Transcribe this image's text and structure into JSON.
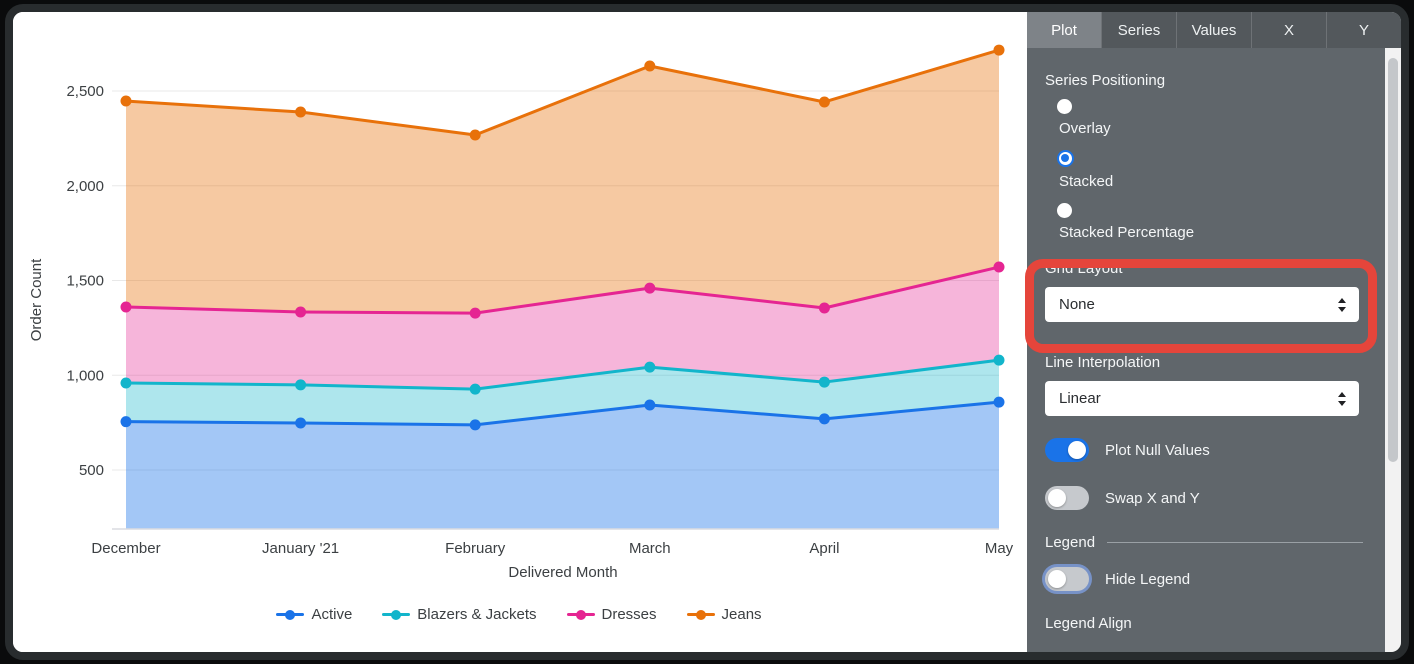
{
  "chart": {
    "y_axis_title": "Order Count",
    "x_axis_title": "Delivered Month"
  },
  "chart_data": {
    "type": "area",
    "stacked": true,
    "x": [
      "December",
      "January '21",
      "February",
      "March",
      "April",
      "May"
    ],
    "series": [
      {
        "name": "Active",
        "color": "#1A73E8",
        "fill": "rgba(26,115,232,0.40)",
        "values": [
          755,
          748,
          738,
          843,
          770,
          858
        ]
      },
      {
        "name": "Blazers & Jackets",
        "color": "#12B5CB",
        "fill": "rgba(18,181,203,0.34)",
        "values": [
          204,
          201,
          189,
          200,
          194,
          222
        ]
      },
      {
        "name": "Dresses",
        "color": "#E52592",
        "fill": "rgba(229,37,146,0.34)",
        "values": [
          401,
          385,
          401,
          417,
          391,
          491
        ]
      },
      {
        "name": "Jeans",
        "color": "#E8710A",
        "fill": "rgba(232,113,10,0.38)",
        "values": [
          1087,
          1055,
          940,
          1172,
          1087,
          1145
        ]
      }
    ],
    "title": "",
    "xlabel": "Delivered Month",
    "ylabel": "Order Count",
    "y_ticks": [
      500,
      1000,
      1500,
      2000,
      2500
    ],
    "y_tick_labels": [
      "500",
      "1,000",
      "1,500",
      "2,000",
      "2,500"
    ],
    "ylim_visible": [
      189,
      2910
    ],
    "grid": true,
    "legend_position": "bottom",
    "point_markers": true
  },
  "panel": {
    "tabs": [
      {
        "label": "Plot",
        "selected": true
      },
      {
        "label": "Series",
        "selected": false
      },
      {
        "label": "Values",
        "selected": false
      },
      {
        "label": "X",
        "selected": false
      },
      {
        "label": "Y",
        "selected": false
      }
    ],
    "series_positioning": {
      "label": "Series Positioning",
      "options": [
        {
          "label": "Overlay",
          "selected": false
        },
        {
          "label": "Stacked",
          "selected": true
        },
        {
          "label": "Stacked Percentage",
          "selected": false
        }
      ]
    },
    "grid_layout": {
      "label": "Grid Layout",
      "value": "None",
      "icon": "updown-arrow-icon",
      "highlighted": true
    },
    "line_interpolation": {
      "label": "Line Interpolation",
      "value": "Linear",
      "icon": "updown-arrow-icon"
    },
    "toggles": [
      {
        "label": "Plot Null Values",
        "on": true,
        "focused": false
      },
      {
        "label": "Swap X and Y",
        "on": false,
        "focused": false
      }
    ],
    "legend_section": {
      "header": "Legend",
      "hide_legend": {
        "label": "Hide Legend",
        "on": false,
        "focused": true
      },
      "legend_align_label": "Legend Align"
    }
  },
  "annotation": {
    "shape": "rounded-rectangle",
    "color": "#e5453b",
    "target": "Grid Layout control"
  }
}
